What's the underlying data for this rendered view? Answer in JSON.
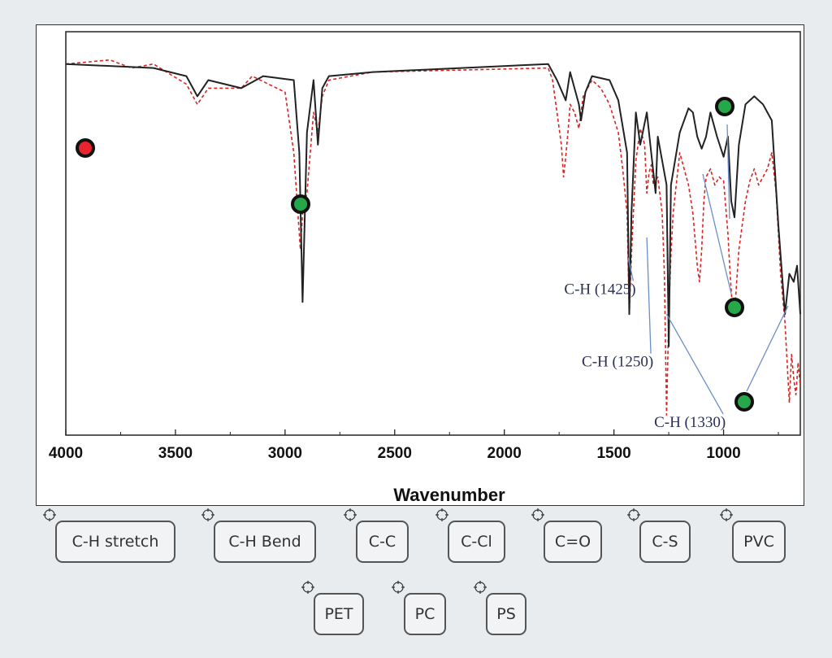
{
  "chart_data": {
    "type": "line",
    "xlabel": "Wavenumber",
    "ylabel": "",
    "xlim": [
      4000,
      650
    ],
    "x_reversed": true,
    "ticks": [
      "4000",
      "3500",
      "3000",
      "2500",
      "2000",
      "1500",
      "1000"
    ],
    "tick_values": [
      4000,
      3500,
      3000,
      2500,
      2000,
      1500,
      1000
    ],
    "ylim": [
      0,
      100
    ],
    "grid": false,
    "legend": "none",
    "series": [
      {
        "style": "solid",
        "color": "#222222",
        "x": [
          4000,
          3600,
          3450,
          3400,
          3350,
          3200,
          3100,
          2960,
          2935,
          2920,
          2900,
          2870,
          2850,
          2830,
          2800,
          2600,
          1800,
          1760,
          1720,
          1700,
          1660,
          1650,
          1630,
          1600,
          1520,
          1480,
          1440,
          1430,
          1420,
          1400,
          1380,
          1350,
          1330,
          1310,
          1300,
          1280,
          1260,
          1250,
          1240,
          1200,
          1160,
          1140,
          1120,
          1100,
          1080,
          1060,
          1030,
          1000,
          980,
          965,
          950,
          930,
          900,
          860,
          820,
          780,
          750,
          720,
          700,
          680,
          665,
          650
        ],
        "y": [
          92,
          91,
          89,
          84,
          88,
          86,
          89,
          88,
          70,
          33,
          75,
          88,
          72,
          86,
          89,
          90,
          92,
          88,
          83,
          90,
          82,
          78,
          85,
          89,
          88,
          83,
          70,
          30,
          55,
          80,
          72,
          80,
          70,
          60,
          74,
          68,
          62,
          22,
          62,
          75,
          81,
          80,
          74,
          71,
          74,
          80,
          74,
          69,
          74,
          58,
          54,
          72,
          82,
          84,
          82,
          78,
          52,
          30,
          40,
          38,
          42,
          30
        ]
      },
      {
        "style": "dashed",
        "color": "#dd2222",
        "x": [
          4000,
          3800,
          3700,
          3600,
          3450,
          3400,
          3350,
          3200,
          3150,
          3000,
          2960,
          2930,
          2920,
          2900,
          2870,
          2850,
          2830,
          2800,
          2600,
          1800,
          1780,
          1760,
          1740,
          1730,
          1720,
          1710,
          1700,
          1680,
          1660,
          1640,
          1620,
          1600,
          1560,
          1520,
          1480,
          1460,
          1440,
          1430,
          1420,
          1400,
          1380,
          1360,
          1350,
          1340,
          1330,
          1320,
          1300,
          1280,
          1270,
          1260,
          1250,
          1240,
          1230,
          1200,
          1180,
          1160,
          1140,
          1120,
          1110,
          1100,
          1090,
          1080,
          1060,
          1040,
          1020,
          1000,
          980,
          970,
          960,
          950,
          930,
          900,
          880,
          860,
          840,
          820,
          800,
          780,
          760,
          740,
          720,
          700,
          690,
          680,
          670,
          660,
          650
        ],
        "y": [
          92,
          93,
          91,
          92,
          87,
          82,
          86,
          86,
          89,
          85,
          70,
          46,
          55,
          60,
          80,
          75,
          84,
          88,
          90,
          91,
          88,
          80,
          72,
          64,
          69,
          75,
          82,
          80,
          76,
          84,
          86,
          88,
          86,
          82,
          75,
          66,
          55,
          30,
          45,
          68,
          76,
          72,
          60,
          65,
          67,
          62,
          64,
          55,
          40,
          5,
          30,
          45,
          55,
          70,
          66,
          62,
          55,
          42,
          38,
          46,
          58,
          64,
          66,
          62,
          64,
          63,
          50,
          40,
          32,
          30,
          46,
          58,
          63,
          66,
          62,
          64,
          66,
          70,
          60,
          40,
          28,
          8,
          20,
          14,
          10,
          18,
          12
        ]
      }
    ],
    "annotations": [
      {
        "text": "C-H (1425)",
        "x": 1560,
        "y": 35,
        "point_x": 1435,
        "point_y": 44
      },
      {
        "text": "C-H (1250)",
        "x": 1480,
        "y": 17,
        "point_x": 1350,
        "point_y": 49
      },
      {
        "text": "C-H (1330)",
        "x": 1150,
        "y": 2,
        "point_x": 1260,
        "point_y": 30
      }
    ]
  },
  "markers": [
    {
      "name": "red",
      "color": "#e8242c"
    },
    {
      "name": "green-1",
      "color": "#26a84a"
    },
    {
      "name": "green-2",
      "color": "#26a84a"
    },
    {
      "name": "green-3",
      "color": "#26a84a"
    },
    {
      "name": "green-4",
      "color": "#26a84a"
    }
  ],
  "chips": [
    "C-H stretch",
    "C-H Bend",
    "C-C",
    "C-Cl",
    "C=O",
    "C-S",
    "PVC",
    "PET",
    "PC",
    "PS"
  ],
  "colors": {
    "background": "#e9ecef",
    "chip_border": "#555555",
    "annotation_text": "#2a2f55",
    "annotation_line": "#6a8fc8"
  }
}
